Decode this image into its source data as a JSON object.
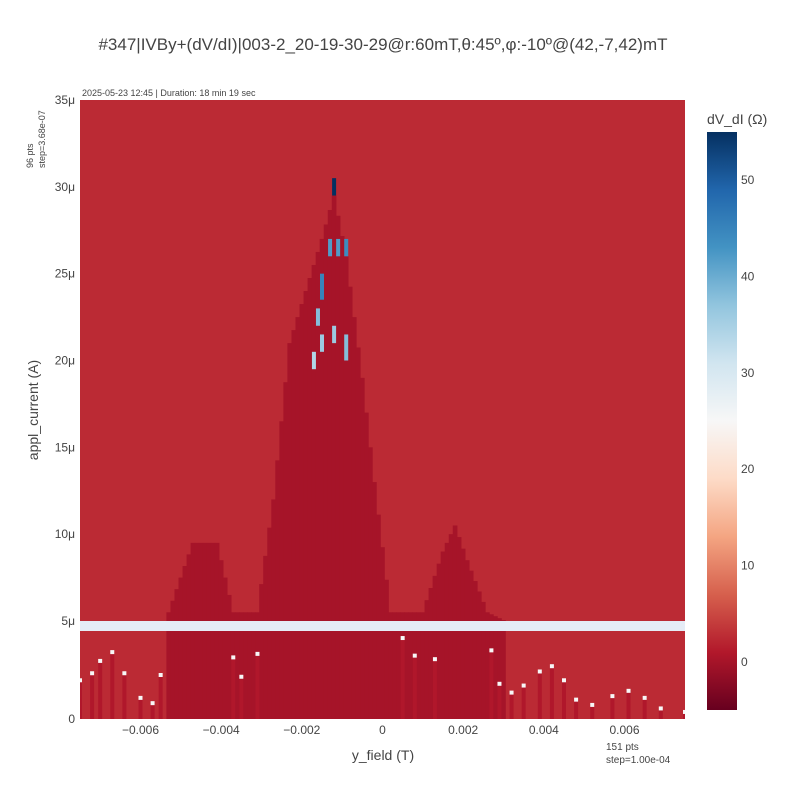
{
  "chart_data": {
    "type": "heatmap",
    "title": "#347|IVBy+(dV/dI)|003-2_20-19-30-29@r:60mT,θ:45º,φ:-10º@(42,-7,42)mT",
    "timestamp_text": "2025-05-23 12:45 | Duration: 18 min 19 sec",
    "xlabel": "y_field (T)",
    "ylabel": "appl_current (A)",
    "colorbar_label": "dV_dI (Ω)",
    "y_points_note": "96 pts",
    "y_step_note": "step=3.68e-07",
    "x_points_note": "151 pts",
    "x_step_note": "step=1.00e-04",
    "xlim": [
      -0.0075,
      0.0075
    ],
    "ylim": [
      0,
      3.5e-05
    ],
    "x_ticks": [
      {
        "v": -0.006,
        "label": "−0.006"
      },
      {
        "v": -0.004,
        "label": "−0.004"
      },
      {
        "v": -0.002,
        "label": "−0.002"
      },
      {
        "v": 0,
        "label": "0"
      },
      {
        "v": 0.002,
        "label": "0.002"
      },
      {
        "v": 0.004,
        "label": "0.004"
      },
      {
        "v": 0.006,
        "label": "0.006"
      }
    ],
    "y_ticks": [
      {
        "v": 0,
        "label": "0"
      },
      {
        "v": 5e-06,
        "label": "5μ"
      },
      {
        "v": 1e-05,
        "label": "10μ"
      },
      {
        "v": 1.5e-05,
        "label": "15μ"
      },
      {
        "v": 2e-05,
        "label": "20μ"
      },
      {
        "v": 2.5e-05,
        "label": "25μ"
      },
      {
        "v": 3e-05,
        "label": "30μ"
      },
      {
        "v": 3.5e-05,
        "label": "35μ"
      }
    ],
    "colorscale": {
      "zmin": -5,
      "zmax": 55,
      "stops": [
        [
          0.0,
          "#67001f"
        ],
        [
          0.1,
          "#b2182b"
        ],
        [
          0.2,
          "#d6604d"
        ],
        [
          0.3,
          "#f4a582"
        ],
        [
          0.4,
          "#fddbc7"
        ],
        [
          0.5,
          "#f7f7f7"
        ],
        [
          0.6,
          "#d1e5f0"
        ],
        [
          0.7,
          "#92c5de"
        ],
        [
          0.8,
          "#4393c3"
        ],
        [
          0.9,
          "#2166ac"
        ],
        [
          1.0,
          "#053061"
        ]
      ],
      "ticks": [
        0,
        10,
        20,
        30,
        40,
        50
      ]
    },
    "background_value": 2.5,
    "superconducting_value": 0,
    "switching_current_envelope": [
      {
        "x": -0.0075,
        "y": 0
      },
      {
        "x": -0.0054,
        "y": 0
      },
      {
        "x": -0.0053,
        "y": 5.5e-06
      },
      {
        "x": -0.0047,
        "y": 9.5e-06
      },
      {
        "x": -0.0041,
        "y": 9.5e-06
      },
      {
        "x": -0.0037,
        "y": 5.5e-06
      },
      {
        "x": -0.0031,
        "y": 5.5e-06
      },
      {
        "x": -0.0027,
        "y": 1.2e-05
      },
      {
        "x": -0.0023,
        "y": 2.1e-05
      },
      {
        "x": -0.0019,
        "y": 2.4e-05
      },
      {
        "x": -0.0015,
        "y": 2.7e-05
      },
      {
        "x": -0.0012,
        "y": 2.95e-05
      },
      {
        "x": -0.0009,
        "y": 2.6e-05
      },
      {
        "x": -0.0005,
        "y": 1.9e-05
      },
      {
        "x": -0.0002,
        "y": 1.3e-05
      },
      {
        "x": 0.0002,
        "y": 5.5e-06
      },
      {
        "x": 0.001,
        "y": 5.5e-06
      },
      {
        "x": 0.0015,
        "y": 9e-06
      },
      {
        "x": 0.0018,
        "y": 1.05e-05
      },
      {
        "x": 0.0021,
        "y": 8.5e-06
      },
      {
        "x": 0.0026,
        "y": 5.5e-06
      },
      {
        "x": 0.0075,
        "y": 0
      }
    ],
    "lower_panel_branch": [
      {
        "x": -0.0075,
        "y": 2.2e-06
      },
      {
        "x": -0.0072,
        "y": 2.6e-06
      },
      {
        "x": -0.007,
        "y": 3.3e-06
      },
      {
        "x": -0.0067,
        "y": 3.8e-06
      },
      {
        "x": -0.0064,
        "y": 2.6e-06
      },
      {
        "x": -0.006,
        "y": 1.2e-06
      },
      {
        "x": -0.0057,
        "y": 9e-07
      },
      {
        "x": -0.0055,
        "y": 2.5e-06
      },
      {
        "x": -0.0037,
        "y": 3.5e-06
      },
      {
        "x": -0.0035,
        "y": 2.4e-06
      },
      {
        "x": -0.0031,
        "y": 3.7e-06
      },
      {
        "x": 0.0005,
        "y": 4.6e-06
      },
      {
        "x": 0.0008,
        "y": 3.6e-06
      },
      {
        "x": 0.0013,
        "y": 3.4e-06
      },
      {
        "x": 0.0027,
        "y": 3.9e-06
      },
      {
        "x": 0.0029,
        "y": 2e-06
      },
      {
        "x": 0.0032,
        "y": 1.5e-06
      },
      {
        "x": 0.0035,
        "y": 1.9e-06
      },
      {
        "x": 0.0039,
        "y": 2.7e-06
      },
      {
        "x": 0.0042,
        "y": 3e-06
      },
      {
        "x": 0.0045,
        "y": 2.2e-06
      },
      {
        "x": 0.0048,
        "y": 1.1e-06
      },
      {
        "x": 0.0052,
        "y": 8e-07
      },
      {
        "x": 0.0057,
        "y": 1.3e-06
      },
      {
        "x": 0.0061,
        "y": 1.6e-06
      },
      {
        "x": 0.0065,
        "y": 1.2e-06
      },
      {
        "x": 0.0069,
        "y": 6e-07
      },
      {
        "x": 0.0075,
        "y": 4e-07
      }
    ],
    "highlight_columns": [
      {
        "x": -0.0015,
        "y0": 2.35e-05,
        "y1": 2.5e-05,
        "z": 45
      },
      {
        "x": -0.0015,
        "y0": 2.05e-05,
        "y1": 2.15e-05,
        "z": 36
      },
      {
        "x": -0.0017,
        "y0": 1.95e-05,
        "y1": 2.05e-05,
        "z": 34
      },
      {
        "x": -0.0016,
        "y0": 2.2e-05,
        "y1": 2.3e-05,
        "z": 38
      },
      {
        "x": -0.0013,
        "y0": 2.6e-05,
        "y1": 2.7e-05,
        "z": 42
      },
      {
        "x": -0.0012,
        "y0": 2.95e-05,
        "y1": 3.05e-05,
        "z": 55
      },
      {
        "x": -0.0011,
        "y0": 2.6e-05,
        "y1": 2.7e-05,
        "z": 42
      },
      {
        "x": -0.0009,
        "y0": 2.6e-05,
        "y1": 2.7e-05,
        "z": 44
      },
      {
        "x": -0.0009,
        "y0": 2e-05,
        "y1": 2.15e-05,
        "z": 38
      },
      {
        "x": -0.0012,
        "y0": 2.1e-05,
        "y1": 2.2e-05,
        "z": 36
      }
    ]
  }
}
